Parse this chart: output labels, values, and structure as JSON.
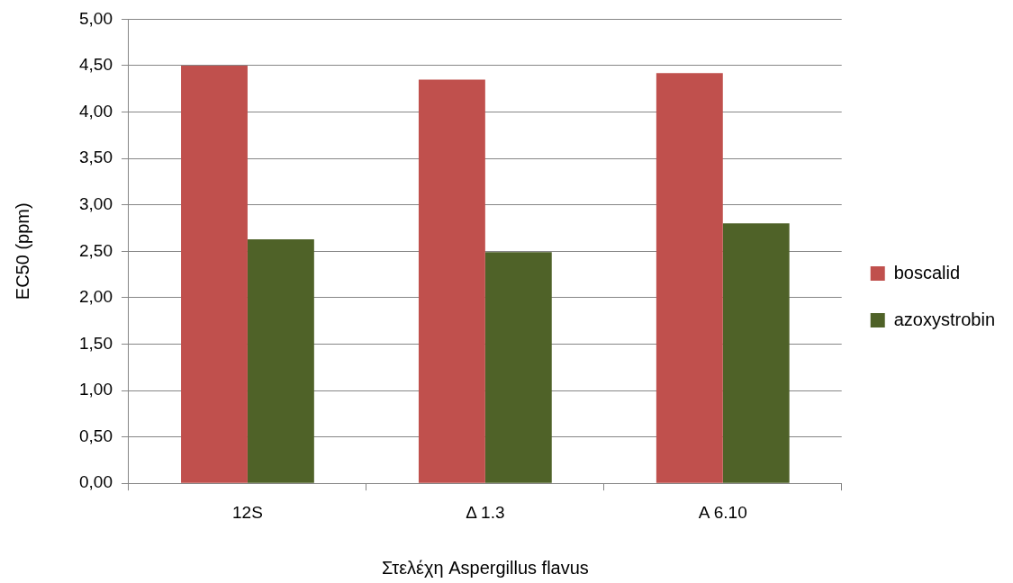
{
  "chart_data": {
    "type": "bar",
    "xlabel": "Στελέχη Aspergillus flavus",
    "ylabel": "EC50 (ppm)",
    "categories": [
      "12S",
      "Δ 1.3",
      "A 6.10"
    ],
    "series": [
      {
        "name": "boscalid",
        "color": "#c0504d",
        "values": [
          4.5,
          4.35,
          4.42
        ]
      },
      {
        "name": "azoxystrobin",
        "color": "#4f6228",
        "values": [
          2.63,
          2.49,
          2.8
        ]
      }
    ],
    "ylim": [
      0,
      5
    ],
    "yticks": [
      {
        "value": 0,
        "label": "0,00"
      },
      {
        "value": 0.5,
        "label": "0,50"
      },
      {
        "value": 1,
        "label": "1,00"
      },
      {
        "value": 1.5,
        "label": "1,50"
      },
      {
        "value": 2,
        "label": "2,00"
      },
      {
        "value": 2.5,
        "label": "2,50"
      },
      {
        "value": 3,
        "label": "3,00"
      },
      {
        "value": 3.5,
        "label": "3,50"
      },
      {
        "value": 4,
        "label": "4,00"
      },
      {
        "value": 4.5,
        "label": "4,50"
      },
      {
        "value": 5,
        "label": "5,00"
      }
    ],
    "grid": "y",
    "legend": "right"
  }
}
